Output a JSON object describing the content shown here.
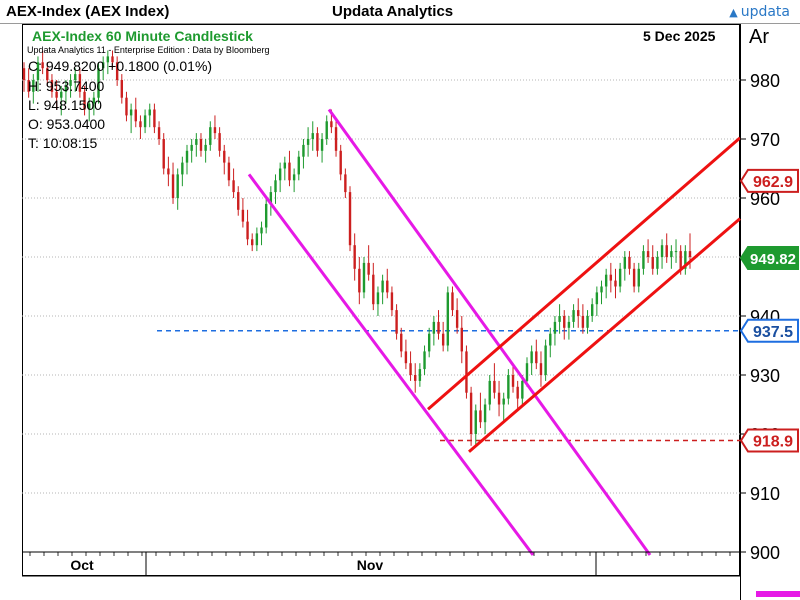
{
  "header": {
    "instrument": "AEX-Index (AEX Index)",
    "vendor": "Updata Analytics",
    "brand": "updata"
  },
  "chart_header": {
    "subtitle": "AEX-Index 60 Minute Candlestick",
    "date": "5 Dec 2025",
    "edition": "Updata Analytics 11 - Enterprise Edition : Data by Bloomberg",
    "axis_code": "Ar"
  },
  "ohlc": {
    "close": "C: 949.8200  +0.1800 (0.01%)",
    "high": "H: 953.7400",
    "low": "L: 948.1500",
    "open": "O: 953.0400",
    "time": "T: 10:08:15"
  },
  "colors": {
    "up": "#1e9a2f",
    "down": "#cc1f1f",
    "channel_down": "#e619e6",
    "channel_up": "#ee1111",
    "level_blue": "#1e6ee0",
    "level_red": "#cc1f1f",
    "last_price_bg": "#1e9a2f"
  },
  "chart_data": {
    "type": "candlestick",
    "x_labels": [
      "Oct",
      "Nov"
    ],
    "y_ticks": [
      900,
      910,
      920,
      930,
      940,
      950,
      960,
      970,
      980
    ],
    "ylim": [
      897,
      988
    ],
    "markers": [
      {
        "label": "962.9",
        "value": 962.9,
        "style": "red"
      },
      {
        "label": "949.82",
        "value": 949.82,
        "style": "green"
      },
      {
        "label": "937.5",
        "value": 937.5,
        "style": "blue"
      },
      {
        "label": "918.9",
        "value": 918.9,
        "style": "red"
      }
    ],
    "horizontal_levels": [
      {
        "value": 937.5,
        "style": "blue-dashed"
      },
      {
        "value": 918.9,
        "style": "red-dashed"
      }
    ],
    "candles": [
      [
        982,
        983,
        978,
        980
      ],
      [
        980,
        982,
        977,
        978
      ],
      [
        978,
        981,
        976,
        980
      ],
      [
        980,
        984,
        978,
        983
      ],
      [
        983,
        985,
        981,
        982
      ],
      [
        982,
        983,
        979,
        980
      ],
      [
        980,
        981,
        977,
        978
      ],
      [
        978,
        980,
        975,
        977
      ],
      [
        977,
        979,
        974,
        978
      ],
      [
        978,
        980,
        976,
        979
      ],
      [
        979,
        981,
        977,
        980
      ],
      [
        980,
        982,
        978,
        981
      ],
      [
        981,
        982,
        977,
        978
      ],
      [
        978,
        979,
        974,
        975
      ],
      [
        975,
        977,
        973,
        976
      ],
      [
        976,
        978,
        974,
        977
      ],
      [
        977,
        983,
        976,
        982
      ],
      [
        982,
        984,
        980,
        983
      ],
      [
        983,
        985,
        981,
        984
      ],
      [
        984,
        985,
        982,
        983
      ],
      [
        983,
        984,
        979,
        980
      ],
      [
        980,
        981,
        976,
        977
      ],
      [
        977,
        978,
        973,
        974
      ],
      [
        974,
        976,
        971,
        975
      ],
      [
        975,
        977,
        972,
        973
      ],
      [
        973,
        974,
        970,
        972
      ],
      [
        972,
        975,
        971,
        974
      ],
      [
        974,
        976,
        972,
        975
      ],
      [
        975,
        976,
        971,
        972
      ],
      [
        972,
        973,
        969,
        970
      ],
      [
        970,
        971,
        964,
        965
      ],
      [
        965,
        967,
        962,
        964
      ],
      [
        964,
        966,
        959,
        960
      ],
      [
        960,
        965,
        958,
        964
      ],
      [
        964,
        967,
        962,
        966
      ],
      [
        966,
        969,
        964,
        968
      ],
      [
        968,
        970,
        966,
        969
      ],
      [
        969,
        971,
        967,
        970
      ],
      [
        970,
        971,
        967,
        968
      ],
      [
        968,
        970,
        966,
        969
      ],
      [
        969,
        973,
        968,
        972
      ],
      [
        972,
        974,
        970,
        971
      ],
      [
        971,
        972,
        967,
        968
      ],
      [
        968,
        969,
        964,
        966
      ],
      [
        966,
        967,
        962,
        963
      ],
      [
        963,
        965,
        960,
        961
      ],
      [
        961,
        962,
        957,
        958
      ],
      [
        958,
        960,
        955,
        956
      ],
      [
        956,
        958,
        952,
        953
      ],
      [
        953,
        954,
        951,
        952
      ],
      [
        952,
        955,
        951,
        954
      ],
      [
        954,
        956,
        952,
        955
      ],
      [
        955,
        960,
        954,
        959
      ],
      [
        959,
        962,
        957,
        961
      ],
      [
        961,
        964,
        959,
        963
      ],
      [
        963,
        966,
        961,
        965
      ],
      [
        965,
        967,
        963,
        966
      ],
      [
        966,
        968,
        962,
        963
      ],
      [
        963,
        965,
        961,
        964
      ],
      [
        964,
        968,
        963,
        967
      ],
      [
        967,
        970,
        965,
        969
      ],
      [
        969,
        972,
        967,
        970
      ],
      [
        970,
        973,
        968,
        971
      ],
      [
        971,
        972,
        967,
        968
      ],
      [
        968,
        971,
        966,
        970
      ],
      [
        970,
        974,
        969,
        973
      ],
      [
        973,
        975,
        971,
        972
      ],
      [
        972,
        973,
        967,
        968
      ],
      [
        968,
        969,
        963,
        964
      ],
      [
        964,
        965,
        960,
        961
      ],
      [
        961,
        962,
        951,
        952
      ],
      [
        952,
        954,
        946,
        948
      ],
      [
        948,
        950,
        942,
        944
      ],
      [
        944,
        950,
        943,
        949
      ],
      [
        949,
        952,
        946,
        947
      ],
      [
        947,
        949,
        941,
        942
      ],
      [
        942,
        945,
        940,
        944
      ],
      [
        944,
        947,
        942,
        946
      ],
      [
        946,
        948,
        943,
        944
      ],
      [
        944,
        945,
        940,
        941
      ],
      [
        941,
        942,
        936,
        937
      ],
      [
        937,
        938,
        933,
        934
      ],
      [
        934,
        936,
        931,
        932
      ],
      [
        932,
        934,
        929,
        930
      ],
      [
        930,
        932,
        927,
        929
      ],
      [
        929,
        932,
        928,
        931
      ],
      [
        931,
        935,
        930,
        934
      ],
      [
        934,
        938,
        933,
        937
      ],
      [
        937,
        940,
        935,
        939
      ],
      [
        939,
        941,
        936,
        937
      ],
      [
        937,
        939,
        934,
        935
      ],
      [
        935,
        945,
        934,
        944
      ],
      [
        944,
        945,
        940,
        941
      ],
      [
        941,
        943,
        937,
        938
      ],
      [
        938,
        940,
        932,
        934
      ],
      [
        934,
        935,
        926,
        927
      ],
      [
        927,
        928,
        918,
        920
      ],
      [
        920,
        925,
        918,
        924
      ],
      [
        924,
        927,
        921,
        922
      ],
      [
        922,
        926,
        920,
        925
      ],
      [
        925,
        930,
        924,
        929
      ],
      [
        929,
        932,
        926,
        927
      ],
      [
        927,
        929,
        923,
        925
      ],
      [
        925,
        927,
        922,
        926
      ],
      [
        926,
        931,
        925,
        930
      ],
      [
        930,
        932,
        927,
        928
      ],
      [
        928,
        929,
        924,
        926
      ],
      [
        926,
        930,
        925,
        929
      ],
      [
        929,
        933,
        928,
        932
      ],
      [
        932,
        935,
        930,
        934
      ],
      [
        934,
        936,
        931,
        932
      ],
      [
        932,
        934,
        928,
        930
      ],
      [
        930,
        936,
        929,
        935
      ],
      [
        935,
        938,
        933,
        937
      ],
      [
        937,
        940,
        935,
        939
      ],
      [
        939,
        942,
        937,
        940
      ],
      [
        940,
        941,
        936,
        938
      ],
      [
        938,
        940,
        936,
        939
      ],
      [
        939,
        942,
        938,
        941
      ],
      [
        941,
        943,
        938,
        940
      ],
      [
        940,
        942,
        937,
        938
      ],
      [
        938,
        941,
        937,
        940
      ],
      [
        940,
        943,
        939,
        942
      ],
      [
        942,
        945,
        940,
        944
      ],
      [
        944,
        946,
        942,
        945
      ],
      [
        945,
        948,
        943,
        947
      ],
      [
        947,
        949,
        944,
        946
      ],
      [
        946,
        948,
        943,
        945
      ],
      [
        945,
        949,
        944,
        948
      ],
      [
        948,
        951,
        946,
        950
      ],
      [
        950,
        951,
        947,
        948
      ],
      [
        948,
        949,
        944,
        945
      ],
      [
        945,
        949,
        944,
        948
      ],
      [
        948,
        952,
        947,
        951
      ],
      [
        951,
        953,
        949,
        950
      ],
      [
        950,
        952,
        947,
        948
      ],
      [
        948,
        951,
        947,
        950
      ],
      [
        950,
        953,
        948,
        952
      ],
      [
        952,
        954,
        949,
        950
      ],
      [
        950,
        952,
        948,
        951
      ],
      [
        951,
        953,
        949,
        951
      ],
      [
        951,
        952,
        947,
        948
      ],
      [
        948,
        952,
        947,
        951
      ],
      [
        951,
        954,
        948,
        950
      ]
    ],
    "channels": [
      {
        "name": "down-channel-upper",
        "color": "channel_down",
        "points": [
          [
            329,
            975
          ],
          [
            650,
            899.5
          ]
        ]
      },
      {
        "name": "down-channel-lower",
        "color": "channel_down",
        "points": [
          [
            249,
            964
          ],
          [
            533,
            899.5
          ]
        ]
      },
      {
        "name": "up-channel-upper",
        "color": "channel_up",
        "points": [
          [
            428,
            924.2
          ],
          [
            740,
            970.2
          ]
        ]
      },
      {
        "name": "up-channel-lower",
        "color": "channel_up",
        "points": [
          [
            469,
            917
          ],
          [
            740,
            956.5
          ]
        ]
      }
    ]
  }
}
